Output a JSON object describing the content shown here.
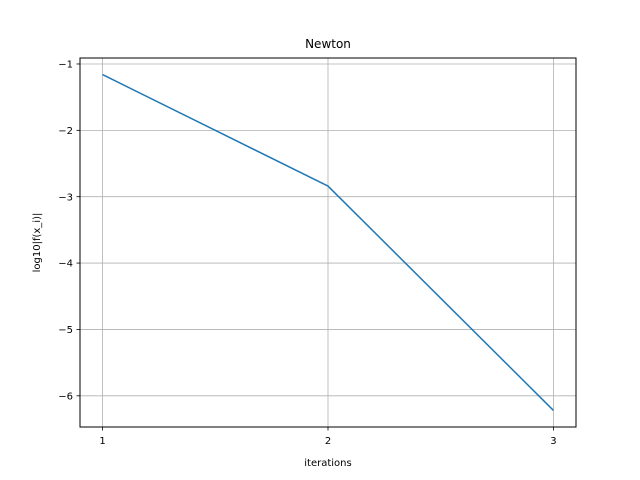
{
  "chart_data": {
    "type": "line",
    "title": "Newton",
    "xlabel": "iterations",
    "ylabel": "log10|f(x_i)|",
    "x": [
      1,
      2,
      3
    ],
    "series": [
      {
        "values": [
          -1.16,
          -2.84,
          -6.22
        ],
        "color": "#1f77b4"
      }
    ],
    "xlim": [
      0.9,
      3.1
    ],
    "ylim": [
      -6.47,
      -0.91
    ],
    "xticks": [
      1,
      2,
      3
    ],
    "yticks": [
      -1,
      -2,
      -3,
      -4,
      -5,
      -6
    ],
    "xtick_labels": [
      "1",
      "2",
      "3"
    ],
    "ytick_labels": [
      "−1",
      "−2",
      "−3",
      "−4",
      "−5",
      "−6"
    ],
    "grid": true
  }
}
